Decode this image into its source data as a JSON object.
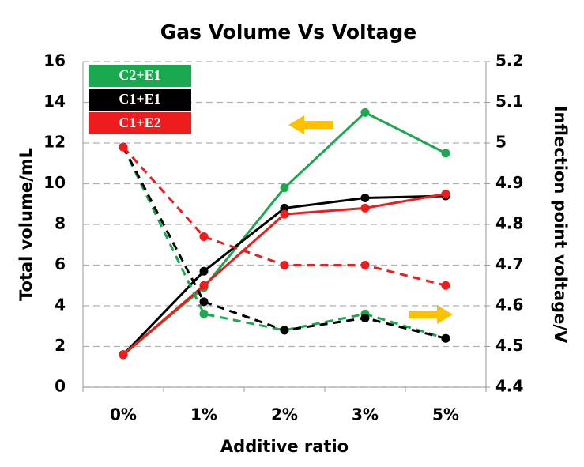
{
  "chart_data": {
    "type": "line",
    "title": "Gas Volume Vs Voltage",
    "x_label": "Additive ratio",
    "y_label": "Total volume/mL",
    "y2_label": "Inflection point voltage/V",
    "categories": [
      "0%",
      "1%",
      "2%",
      "3%",
      "5%"
    ],
    "ylim": [
      0,
      16
    ],
    "yticks": [
      0,
      2,
      4,
      6,
      8,
      10,
      12,
      14,
      16
    ],
    "y2lim": [
      4.4,
      5.2
    ],
    "y2ticks": [
      4.4,
      4.5,
      4.6,
      4.7,
      4.8,
      4.9,
      5,
      5.1,
      5.2
    ],
    "grid": true,
    "legend": "upper left",
    "series": [
      {
        "name": "C2+E1",
        "color": "#1aa94f",
        "linestyle": "solid",
        "values": [
          1.6,
          4.9,
          9.8,
          13.5,
          11.5
        ]
      },
      {
        "name": "C1+E1",
        "color": "#000000",
        "linestyle": "solid",
        "values": [
          1.6,
          5.7,
          8.8,
          9.3,
          9.4
        ]
      },
      {
        "name": "C1+E2",
        "color": "#ee1c1c",
        "linestyle": "solid",
        "values": [
          1.6,
          5.0,
          8.5,
          8.8,
          9.5
        ]
      },
      {
        "name": "C2+E1",
        "color": "#1aa94f",
        "linestyle": "dashed",
        "axis": "y2",
        "values": [
          4.99,
          4.58,
          4.54,
          4.58,
          4.52
        ]
      },
      {
        "name": "C1+E1",
        "color": "#000000",
        "linestyle": "dashed",
        "axis": "y2",
        "values": [
          4.99,
          4.61,
          4.54,
          4.57,
          4.52
        ]
      },
      {
        "name": "C1+E2",
        "color": "#ee1c1c",
        "linestyle": "dashed",
        "axis": "y2",
        "values": [
          4.99,
          4.77,
          4.7,
          4.7,
          4.65
        ]
      }
    ]
  }
}
